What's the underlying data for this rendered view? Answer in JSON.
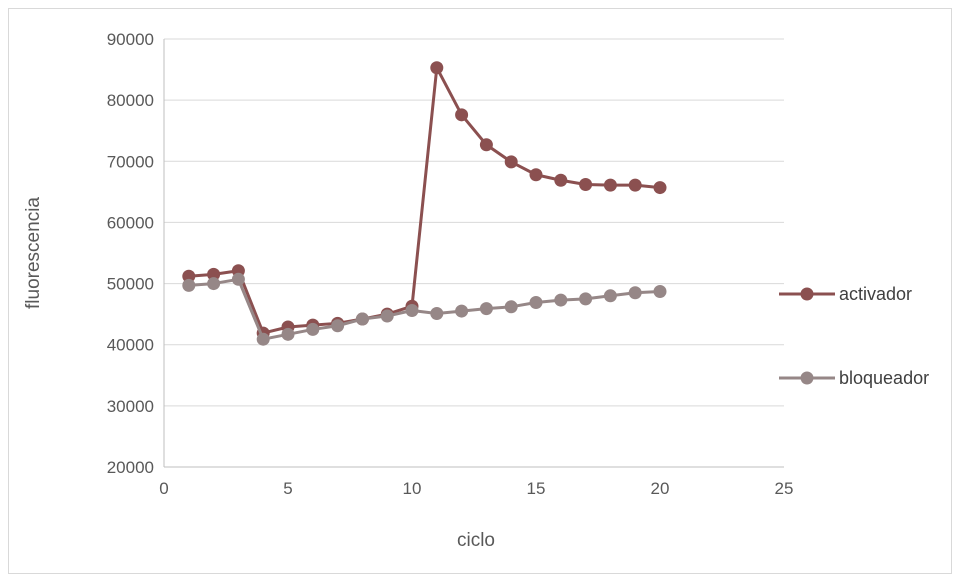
{
  "chart_data": {
    "type": "scatter",
    "title": "",
    "xlabel": "ciclo",
    "ylabel": "fluorescencia",
    "xlim": [
      0,
      25
    ],
    "ylim": [
      20000,
      90000
    ],
    "xticks": [
      0,
      5,
      10,
      15,
      20,
      25
    ],
    "yticks": [
      20000,
      30000,
      40000,
      50000,
      60000,
      70000,
      80000,
      90000
    ],
    "grid": "horizontal",
    "legend_position": "right",
    "x": [
      1,
      2,
      3,
      4,
      5,
      6,
      7,
      8,
      9,
      10,
      11,
      12,
      13,
      14,
      15,
      16,
      17,
      18,
      19,
      20
    ],
    "series": [
      {
        "name": "activador",
        "color": "#8b5050",
        "values": [
          51200,
          51500,
          52100,
          41900,
          42900,
          43200,
          43500,
          44200,
          45000,
          46300,
          85300,
          77600,
          72700,
          69900,
          67800,
          66900,
          66200,
          66100,
          66100,
          65700
        ]
      },
      {
        "name": "bloqueador",
        "color": "#968787",
        "values": [
          49700,
          50000,
          50700,
          40900,
          41700,
          42500,
          43100,
          44200,
          44700,
          45600,
          45100,
          45500,
          45900,
          46200,
          46900,
          47300,
          47500,
          48000,
          48500,
          48700
        ]
      }
    ]
  }
}
